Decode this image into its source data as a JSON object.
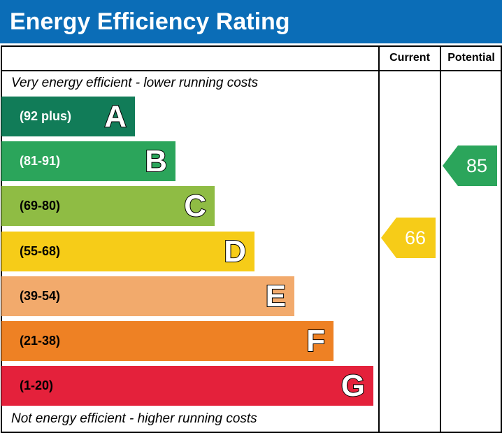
{
  "title": "Energy Efficiency Rating",
  "headers": {
    "current": "Current",
    "potential": "Potential"
  },
  "notes": {
    "top": "Very energy efficient - lower running costs",
    "bottom": "Not energy efficient - higher running costs"
  },
  "chart_data": {
    "type": "bar",
    "categories": [
      "A",
      "B",
      "C",
      "D",
      "E",
      "F",
      "G"
    ],
    "ranges": [
      "(92 plus)",
      "(81-91)",
      "(69-80)",
      "(55-68)",
      "(39-54)",
      "(21-38)",
      "(1-20)"
    ],
    "colors": [
      "#117c58",
      "#2ba55b",
      "#8fbc44",
      "#f6cc18",
      "#f2aa6c",
      "#ee8124",
      "#e4213b"
    ],
    "range_text_colors": [
      "#ffffff",
      "#ffffff",
      "#000000",
      "#000000",
      "#000000",
      "#000000",
      "#000000"
    ],
    "current": {
      "value": "66",
      "band": "D",
      "color": "#f6cc18"
    },
    "potential": {
      "value": "85",
      "band": "B",
      "color": "#2ba55b"
    }
  }
}
